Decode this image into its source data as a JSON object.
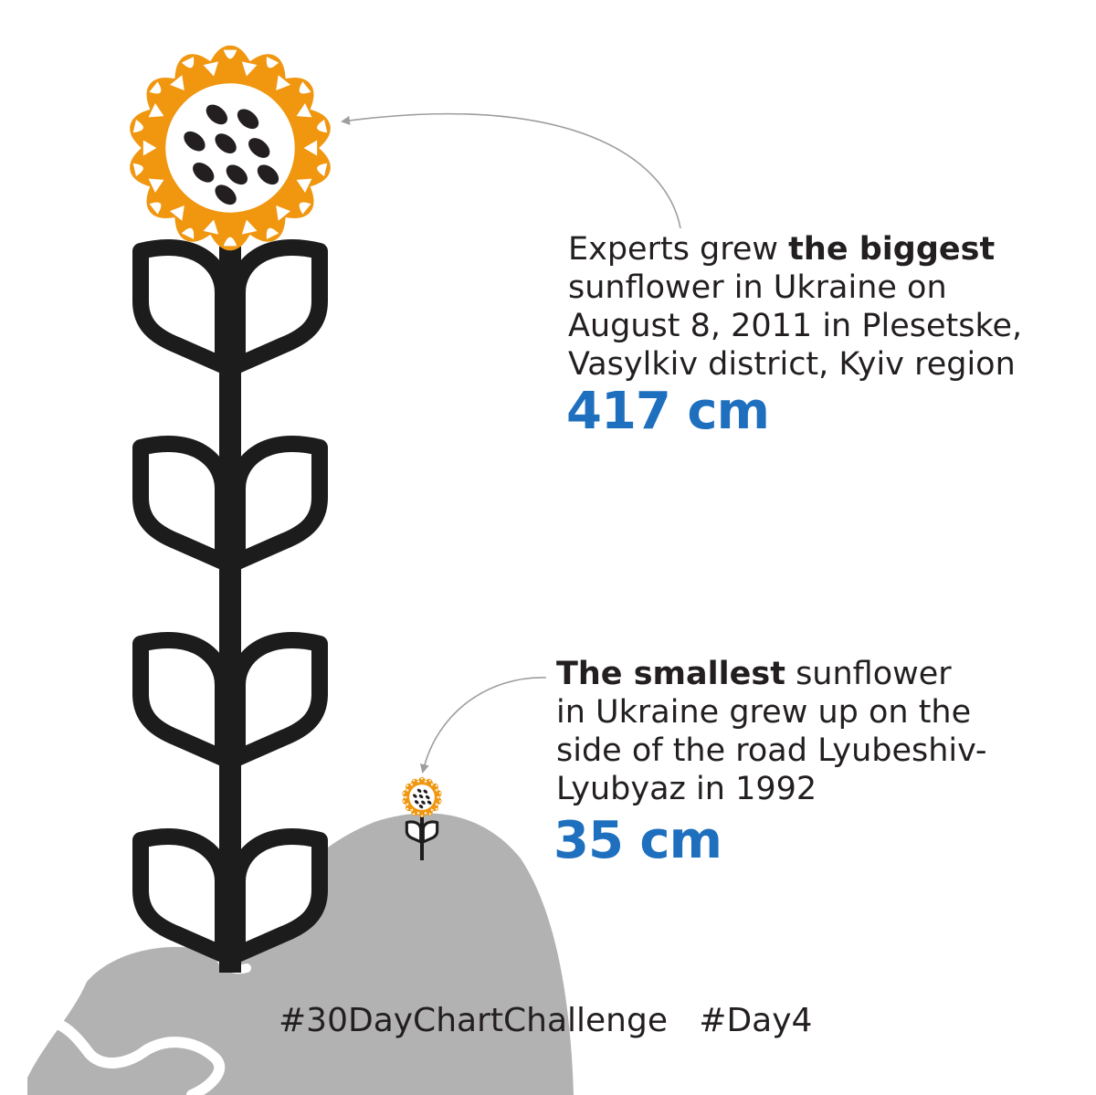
{
  "chart_data": {
    "type": "pictograph",
    "unit": "cm",
    "series": [
      {
        "values": [
          417
        ],
        "text_prefix": "Experts grew ",
        "text_bold": "the biggest",
        "text_rest_1": "sunflower in Ukraine on",
        "text_rest_2": "August 8, 2011 in Plesetske,",
        "text_rest_3": "Vasylkiv district, Kyiv region",
        "value_label": "417 cm"
      },
      {
        "values": [
          35
        ],
        "text_bold": "The smallest",
        "text_suffix": " sunflower",
        "text_rest_1": "in Ukraine grew up on the",
        "text_rest_2": "side of the road Lyubeshiv-",
        "text_rest_3": "Lyubyaz in 1992",
        "value_label": "35 cm"
      }
    ]
  },
  "footer": {
    "hashtags": "#30DayChartChallenge   #Day4"
  },
  "colors": {
    "petal": "#f0960f",
    "seed": "#231f20",
    "stem": "#1c1c1c",
    "ground": "#b2b2b2",
    "value": "#1f6fbf",
    "arrow": "#9e9e9e"
  },
  "icons": [
    "sunflower-icon",
    "ground-globe-icon",
    "arrow-icon"
  ]
}
